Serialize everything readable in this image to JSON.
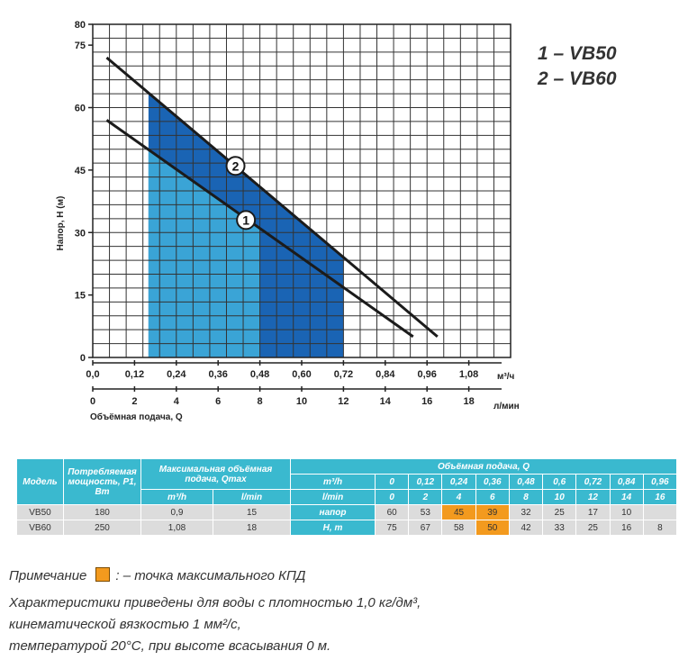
{
  "legend": [
    "1 – VB50",
    "2 – VB60"
  ],
  "chart_data": {
    "type": "line",
    "ylabel": "Напор, Н (м)",
    "ylim": [
      0,
      80
    ],
    "xlim": [
      0,
      1.2
    ],
    "yticks": [
      "0",
      "15",
      "30",
      "45",
      "60",
      "75",
      "80"
    ],
    "yticks_values": [
      0,
      15,
      30,
      45,
      60,
      75,
      80
    ],
    "x_top_ticks": [
      "0,0",
      "0,12",
      "0,24",
      "0,36",
      "0,48",
      "0,60",
      "0,72",
      "0,84",
      "0,96",
      "1,08"
    ],
    "x_top_values": [
      0,
      0.12,
      0.24,
      0.36,
      0.48,
      0.6,
      0.72,
      0.84,
      0.96,
      1.08
    ],
    "x_top_unit": "м³/ч",
    "x_bottom_ticks": [
      "0",
      "2",
      "4",
      "6",
      "8",
      "10",
      "12",
      "14",
      "16",
      "18"
    ],
    "x_bottom_values": [
      0,
      2,
      4,
      6,
      8,
      10,
      12,
      14,
      16,
      18
    ],
    "x_bottom_unit": "л/мин",
    "x_bottom_label": "Объёмная подача, Q",
    "series": [
      {
        "name": "1",
        "x": [
          0.04,
          0.92
        ],
        "y": [
          57,
          5.0
        ]
      },
      {
        "name": "2",
        "x": [
          0.04,
          0.99
        ],
        "y": [
          72,
          5.0
        ]
      }
    ],
    "series_label_positions": [
      {
        "label": "1",
        "x": 0.44,
        "y": 33
      },
      {
        "label": "2",
        "x": 0.41,
        "y": 46
      }
    ],
    "region1": {
      "x_from": 0.16,
      "x_to": 0.48,
      "color": "#3aa4d6"
    },
    "region2_x_from": 0.16,
    "region2_x_to": 0.72,
    "region2_color": "#1a64b4"
  },
  "table": {
    "model_header": "Модель",
    "power_header": "Потребляемая мощность, P1, Вт",
    "qmax_header": "Максимальная объёмная подача, Qmax",
    "qmax_unit_m3h": "m³/h",
    "qmax_unit_lmin": "l/min",
    "flow_header": "Объёмная подача, Q",
    "flow_row_m3h_label": "m³/h",
    "flow_row_lmin_label": "l/min",
    "flow_m3h": [
      "0",
      "0,12",
      "0,24",
      "0,36",
      "0,48",
      "0,6",
      "0,72",
      "0,84",
      "0,96"
    ],
    "flow_lmin": [
      "0",
      "2",
      "4",
      "6",
      "8",
      "10",
      "12",
      "14",
      "16"
    ],
    "head_label_1": "напор",
    "head_label_2": "H, m",
    "rows": [
      {
        "model": "VB50",
        "power": "180",
        "qmax_m3h": "0,9",
        "qmax_lmin": "15",
        "head": [
          "60",
          "53",
          "45",
          "39",
          "32",
          "25",
          "17",
          "10",
          ""
        ]
      },
      {
        "model": "VB60",
        "power": "250",
        "qmax_m3h": "1,08",
        "qmax_lmin": "18",
        "head": [
          "75",
          "67",
          "58",
          "50",
          "42",
          "33",
          "25",
          "16",
          "8"
        ]
      }
    ]
  },
  "notes": {
    "note_prefix": "Примечание",
    "note_suffix": ": – точка максимального КПД",
    "line1": "Характеристики приведены для воды с плотностью 1,0 кг/дм³,",
    "line2": "кинематической вязкостью 1 мм²/с,",
    "line3": "температурой 20°С, при высоте всасывания 0 м."
  },
  "colors": {
    "table_header": "#3ab9cf",
    "table_row": "#dcdcdc",
    "max_efficiency": "#f39a1e"
  }
}
